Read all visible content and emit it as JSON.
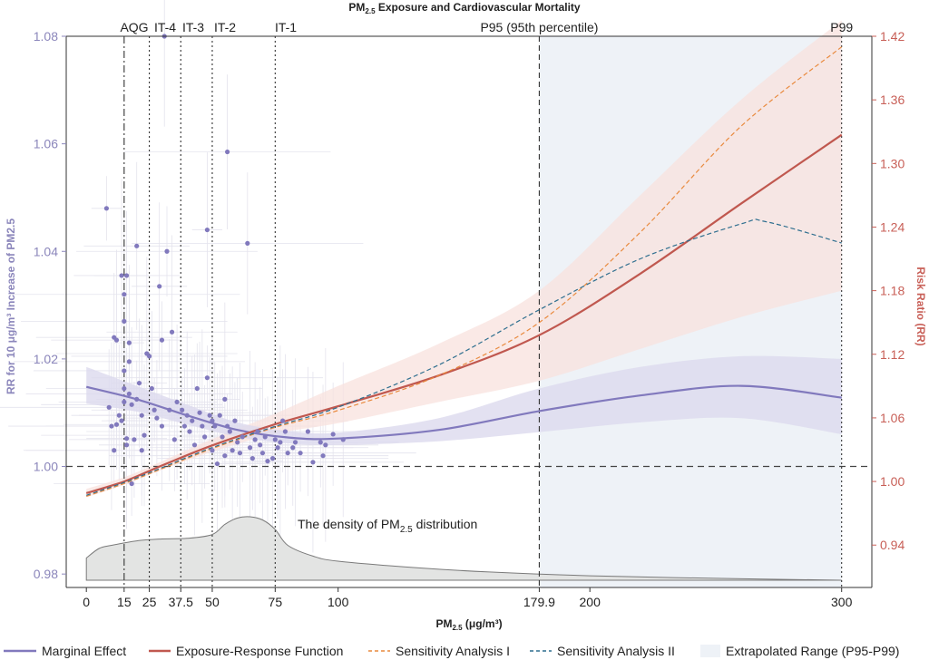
{
  "chart_data": {
    "type": "line",
    "title": "PM2.5 Exposure and Cardiovascular Mortality",
    "title_main": "PM",
    "title_sub": "2.5",
    "title_rest": " Exposure and Cardiovascular Mortality",
    "xlabel_main": "PM",
    "xlabel_sub": "2.5",
    "xlabel_rest": " (μg/m³)",
    "ylabel_left": "RR for 10 μg/m³ Increase of PM2.5",
    "ylabel_right": "Risk Ratio (RR)",
    "x_ticks": [
      0,
      15,
      25,
      37.5,
      50,
      75,
      100,
      179.9,
      200,
      300
    ],
    "x_tick_labels": [
      "0",
      "15",
      "25",
      "37.5",
      "50",
      "75",
      "100",
      "179.9",
      "200",
      "300"
    ],
    "xlim": [
      -8,
      312
    ],
    "left_ticks": [
      0.98,
      1.0,
      1.02,
      1.04,
      1.06,
      1.08
    ],
    "left_tick_labels": [
      "0.98",
      "1.00",
      "1.02",
      "1.04",
      "1.06",
      "1.08"
    ],
    "ylim_left": [
      0.9775,
      1.08
    ],
    "right_ticks": [
      0.94,
      1.0,
      1.06,
      1.12,
      1.18,
      1.24,
      1.3,
      1.36,
      1.42
    ],
    "right_tick_labels": [
      "0.94",
      "1.00",
      "1.06",
      "1.12",
      "1.18",
      "1.24",
      "1.30",
      "1.36",
      "1.42"
    ],
    "ylim_right": [
      0.9,
      1.42
    ],
    "reference_lines": [
      {
        "label": "AQG",
        "x": 15,
        "style": "dashdot"
      },
      {
        "label": "IT-4",
        "x": 25,
        "style": "dotted"
      },
      {
        "label": "IT-3",
        "x": 37.5,
        "style": "dotted"
      },
      {
        "label": "IT-2",
        "x": 50,
        "style": "dotted"
      },
      {
        "label": "IT-1",
        "x": 75,
        "style": "dotted"
      },
      {
        "label": "P95 (95th percentile)",
        "x": 179.9,
        "style": "dashed"
      },
      {
        "label": "P99",
        "x": 300,
        "style": "dotted"
      }
    ],
    "density_annotation": {
      "pre": "The density of PM",
      "sub": "2.5",
      "post": " distribution"
    },
    "density_profile": [
      [
        0,
        0.35
      ],
      [
        5,
        0.5
      ],
      [
        10,
        0.55
      ],
      [
        20,
        0.62
      ],
      [
        30,
        0.65
      ],
      [
        40,
        0.66
      ],
      [
        50,
        0.72
      ],
      [
        55,
        0.88
      ],
      [
        60,
        0.98
      ],
      [
        65,
        1.0
      ],
      [
        70,
        0.95
      ],
      [
        75,
        0.8
      ],
      [
        80,
        0.55
      ],
      [
        90,
        0.38
      ],
      [
        100,
        0.3
      ],
      [
        130,
        0.2
      ],
      [
        160,
        0.13
      ],
      [
        200,
        0.07
      ],
      [
        250,
        0.03
      ],
      [
        300,
        0.0
      ]
    ],
    "series": [
      {
        "name": "Marginal Effect",
        "axis": "left",
        "color": "#8179bd",
        "style": "solid",
        "x": [
          0,
          20,
          40,
          60,
          80,
          100,
          140,
          179.9,
          220,
          260,
          300
        ],
        "y": [
          1.0148,
          1.0125,
          1.0095,
          1.0068,
          1.0054,
          1.0052,
          1.0068,
          1.0103,
          1.0132,
          1.015,
          1.0128
        ],
        "ci_lower": [
          1.0117,
          1.0102,
          1.0078,
          1.0055,
          1.0043,
          1.004,
          1.0047,
          1.0064,
          1.0082,
          1.009,
          1.006
        ],
        "ci_upper": [
          1.0185,
          1.015,
          1.0115,
          1.0082,
          1.0066,
          1.0063,
          1.009,
          1.0145,
          1.0185,
          1.0205,
          1.02
        ]
      },
      {
        "name": "Exposure-Response Function",
        "axis": "right",
        "color": "#c0584f",
        "style": "solid",
        "x": [
          0,
          15,
          30,
          50,
          75,
          100,
          140,
          179.9,
          220,
          260,
          300
        ],
        "y": [
          0.989,
          1.0,
          1.015,
          1.034,
          1.054,
          1.071,
          1.1,
          1.138,
          1.196,
          1.262,
          1.327
        ],
        "ci_lower": [
          0.985,
          0.997,
          1.011,
          1.028,
          1.045,
          1.055,
          1.075,
          1.095,
          1.125,
          1.155,
          1.18
        ],
        "ci_upper": [
          0.993,
          1.004,
          1.019,
          1.04,
          1.064,
          1.09,
          1.13,
          1.18,
          1.27,
          1.36,
          1.435
        ]
      },
      {
        "name": "Sensitivity Analysis I",
        "axis": "right",
        "color": "#e98a3e",
        "style": "dashed",
        "x": [
          0,
          15,
          30,
          50,
          75,
          100,
          140,
          179.9,
          220,
          260,
          300
        ],
        "y": [
          0.986,
          0.998,
          1.012,
          1.031,
          1.051,
          1.067,
          1.1,
          1.15,
          1.235,
          1.335,
          1.41
        ]
      },
      {
        "name": "Sensitivity Analysis II",
        "axis": "right",
        "color": "#2f6f8f",
        "style": "dashed",
        "x": [
          0,
          15,
          30,
          50,
          75,
          100,
          140,
          179.9,
          220,
          260,
          270,
          300
        ],
        "y": [
          0.987,
          0.999,
          1.013,
          1.032,
          1.052,
          1.07,
          1.11,
          1.162,
          1.21,
          1.243,
          1.245,
          1.225
        ]
      }
    ],
    "study_points": [
      {
        "x": 8,
        "y": 1.048
      },
      {
        "x": 9,
        "y": 1.011
      },
      {
        "x": 10,
        "y": 1.0075
      },
      {
        "x": 11,
        "y": 1.003
      },
      {
        "x": 11,
        "y": 1.024
      },
      {
        "x": 12,
        "y": 1.0235
      },
      {
        "x": 12,
        "y": 1.0078
      },
      {
        "x": 13,
        "y": 1.0095
      },
      {
        "x": 14,
        "y": 1.0355
      },
      {
        "x": 14,
        "y": 1.0085
      },
      {
        "x": 15,
        "y": 1.032
      },
      {
        "x": 15,
        "y": 1.027
      },
      {
        "x": 15,
        "y": 1.0178
      },
      {
        "x": 15,
        "y": 1.0145
      },
      {
        "x": 15,
        "y": 1.012
      },
      {
        "x": 16,
        "y": 1.0355
      },
      {
        "x": 16,
        "y": 1.0052
      },
      {
        "x": 16,
        "y": 1.004
      },
      {
        "x": 17,
        "y": 1.023
      },
      {
        "x": 17,
        "y": 1.0195
      },
      {
        "x": 17,
        "y": 1.0135
      },
      {
        "x": 18,
        "y": 1.0115
      },
      {
        "x": 18,
        "y": 0.9968
      },
      {
        "x": 19,
        "y": 1.005
      },
      {
        "x": 20,
        "y": 1.041
      },
      {
        "x": 20,
        "y": 1.0125
      },
      {
        "x": 21,
        "y": 1.0155
      },
      {
        "x": 22,
        "y": 1.0095
      },
      {
        "x": 22,
        "y": 1.003
      },
      {
        "x": 23,
        "y": 1.0058
      },
      {
        "x": 24,
        "y": 1.021
      },
      {
        "x": 25,
        "y": 1.0205
      },
      {
        "x": 26,
        "y": 1.0145
      },
      {
        "x": 27,
        "y": 1.0105
      },
      {
        "x": 28,
        "y": 1.009
      },
      {
        "x": 29,
        "y": 1.0335
      },
      {
        "x": 30,
        "y": 1.0235
      },
      {
        "x": 30,
        "y": 1.0075
      },
      {
        "x": 31,
        "y": 1.08
      },
      {
        "x": 32,
        "y": 1.04
      },
      {
        "x": 33,
        "y": 1.0105
      },
      {
        "x": 34,
        "y": 1.025
      },
      {
        "x": 35,
        "y": 1.005
      },
      {
        "x": 36,
        "y": 1.012
      },
      {
        "x": 38,
        "y": 1.0105
      },
      {
        "x": 39,
        "y": 1.0075
      },
      {
        "x": 40,
        "y": 1.0095
      },
      {
        "x": 41,
        "y": 1.0065
      },
      {
        "x": 42,
        "y": 1.0085
      },
      {
        "x": 43,
        "y": 1.004
      },
      {
        "x": 44,
        "y": 1.0145
      },
      {
        "x": 45,
        "y": 1.01
      },
      {
        "x": 46,
        "y": 1.0075
      },
      {
        "x": 47,
        "y": 1.0055
      },
      {
        "x": 48,
        "y": 1.044
      },
      {
        "x": 48,
        "y": 1.0165
      },
      {
        "x": 49,
        "y": 1.0095
      },
      {
        "x": 50,
        "y": 1.0085
      },
      {
        "x": 50,
        "y": 1.003
      },
      {
        "x": 51,
        "y": 1.0075
      },
      {
        "x": 52,
        "y": 1.0005
      },
      {
        "x": 53,
        "y": 1.0095
      },
      {
        "x": 54,
        "y": 1.0055
      },
      {
        "x": 55,
        "y": 1.0125
      },
      {
        "x": 55,
        "y": 1.002
      },
      {
        "x": 56,
        "y": 1.0585
      },
      {
        "x": 56,
        "y": 1.0075
      },
      {
        "x": 57,
        "y": 1.0065
      },
      {
        "x": 58,
        "y": 1.003
      },
      {
        "x": 59,
        "y": 1.0085
      },
      {
        "x": 60,
        "y": 1.0045
      },
      {
        "x": 61,
        "y": 1.0025
      },
      {
        "x": 62,
        "y": 1.0055
      },
      {
        "x": 64,
        "y": 1.0415
      },
      {
        "x": 65,
        "y": 1.0035
      },
      {
        "x": 66,
        "y": 1.0015
      },
      {
        "x": 67,
        "y": 1.005
      },
      {
        "x": 68,
        "y": 1.0065
      },
      {
        "x": 69,
        "y": 1.004
      },
      {
        "x": 70,
        "y": 1.0025
      },
      {
        "x": 71,
        "y": 1.0055
      },
      {
        "x": 72,
        "y": 1.001
      },
      {
        "x": 74,
        "y": 1.0015
      },
      {
        "x": 75,
        "y": 1.005
      },
      {
        "x": 76,
        "y": 1.0035
      },
      {
        "x": 77,
        "y": 1.0045
      },
      {
        "x": 78,
        "y": 1.0085
      },
      {
        "x": 79,
        "y": 1.0065
      },
      {
        "x": 80,
        "y": 1.0025
      },
      {
        "x": 82,
        "y": 1.0035
      },
      {
        "x": 83,
        "y": 1.0045
      },
      {
        "x": 85,
        "y": 1.0025
      },
      {
        "x": 88,
        "y": 1.0065
      },
      {
        "x": 90,
        "y": 1.0008
      },
      {
        "x": 93,
        "y": 1.0045
      },
      {
        "x": 94,
        "y": 1.002
      },
      {
        "x": 95,
        "y": 1.004
      },
      {
        "x": 98,
        "y": 1.006
      },
      {
        "x": 102,
        "y": 1.005
      }
    ]
  },
  "legend": {
    "items": [
      {
        "label": "Marginal Effect",
        "color": "#8179bd",
        "type": "line"
      },
      {
        "label": "Exposure-Response Function",
        "color": "#c0584f",
        "type": "line"
      },
      {
        "label": "Sensitivity Analysis I",
        "color": "#e98a3e",
        "type": "dashed"
      },
      {
        "label": "Sensitivity Analysis II",
        "color": "#2f6f8f",
        "type": "dashed"
      },
      {
        "label": "Extrapolated Range (P95-P99)",
        "color": "#eef2f7",
        "type": "box"
      }
    ]
  },
  "colors": {
    "left_axis": "#8b86bb",
    "right_axis": "#c85f57",
    "density_fill": "#e3e4e3",
    "density_stroke": "#7a7a7a",
    "extrapolated_fill": "#eef2f7",
    "erf_band": "#f8e1dd",
    "me_band": "#dcdaed"
  }
}
